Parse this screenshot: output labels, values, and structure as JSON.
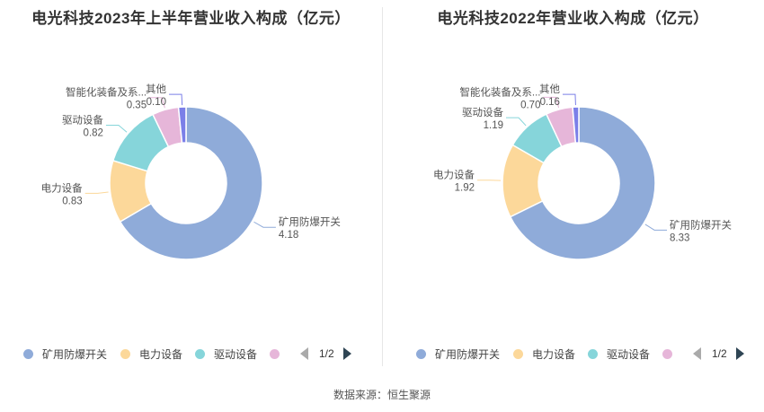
{
  "colors": {
    "矿用防爆开关": "#8fabd9",
    "电力设备": "#fcd89a",
    "驱动设备": "#86d5da",
    "智能化装备及系统": "#e6b6d9",
    "其他": "#7b7fe8"
  },
  "pager": {
    "text": "1/2"
  },
  "source": "数据来源：恒生聚源",
  "chart_data": [
    {
      "type": "pie",
      "title": "电光科技2023年上半年营业收入构成（亿元）",
      "slices": [
        {
          "name": "矿用防爆开关",
          "label": "矿用防爆开关",
          "value": 4.18,
          "value_label": "4.18"
        },
        {
          "name": "电力设备",
          "label": "电力设备",
          "value": 0.83,
          "value_label": "0.83"
        },
        {
          "name": "驱动设备",
          "label": "驱动设备",
          "value": 0.82,
          "value_label": "0.82"
        },
        {
          "name": "智能化装备及系统",
          "label": "智能化装备及系...",
          "value": 0.35,
          "value_label": "0.35"
        },
        {
          "name": "其他",
          "label": "其他",
          "value": 0.1,
          "value_label": "0.10"
        }
      ],
      "legend": [
        "矿用防爆开关",
        "电力设备",
        "驱动设备"
      ],
      "legend_placement": "bottom"
    },
    {
      "type": "pie",
      "title": "电光科技2022年营业收入构成（亿元）",
      "slices": [
        {
          "name": "矿用防爆开关",
          "label": "矿用防爆开关",
          "value": 8.33,
          "value_label": "8.33"
        },
        {
          "name": "电力设备",
          "label": "电力设备",
          "value": 1.92,
          "value_label": "1.92"
        },
        {
          "name": "驱动设备",
          "label": "驱动设备",
          "value": 1.19,
          "value_label": "1.19"
        },
        {
          "name": "智能化装备及系统",
          "label": "智能化装备及系...",
          "value": 0.7,
          "value_label": "0.70"
        },
        {
          "name": "其他",
          "label": "其他",
          "value": 0.16,
          "value_label": "0.16"
        }
      ],
      "legend": [
        "矿用防爆开关",
        "电力设备",
        "驱动设备"
      ],
      "legend_placement": "bottom"
    }
  ]
}
